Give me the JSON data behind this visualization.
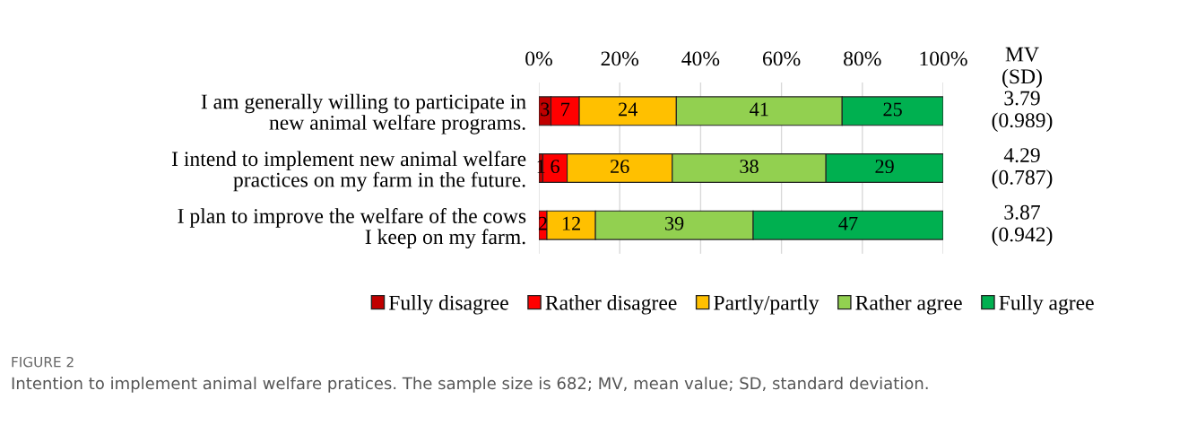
{
  "chart_data": {
    "type": "bar",
    "orientation": "horizontal",
    "stacked": true,
    "categories": [
      "I am generally willing to participate in\nnew animal welfare programs.",
      "I intend to implement new animal welfare\npractices on my farm in the future.",
      "I plan to improve the welfare of the cows\nI keep on my farm."
    ],
    "series": [
      {
        "name": "Fully disagree",
        "color": "#c00000",
        "values": [
          3,
          1,
          0
        ],
        "value_labels": [
          "3",
          "1",
          null
        ]
      },
      {
        "name": "Rather disagree",
        "color": "#ff0000",
        "values": [
          7,
          6,
          2
        ],
        "value_labels": [
          "7",
          "6",
          "2"
        ]
      },
      {
        "name": "Partly/partly",
        "color": "#ffc000",
        "values": [
          24,
          26,
          12
        ],
        "value_labels": [
          "24",
          "26",
          "12"
        ]
      },
      {
        "name": "Rather agree",
        "color": "#92d050",
        "values": [
          41,
          38,
          39
        ],
        "value_labels": [
          "41",
          "38",
          "39"
        ]
      },
      {
        "name": "Fully agree",
        "color": "#00b050",
        "values": [
          25,
          29,
          47
        ],
        "value_labels": [
          "25",
          "29",
          "47"
        ]
      }
    ],
    "xlim": [
      0,
      100
    ],
    "xticks": [
      {
        "value": 0,
        "label": "0%"
      },
      {
        "value": 20,
        "label": "20%"
      },
      {
        "value": 40,
        "label": "40%"
      },
      {
        "value": 60,
        "label": "60%"
      },
      {
        "value": 80,
        "label": "80%"
      },
      {
        "value": 100,
        "label": "100%"
      }
    ],
    "grid": "x",
    "legend": "bottom",
    "annotations": [
      "MV\n(SD)",
      "3.79\n(0.989)",
      "4.29\n(0.787)",
      "3.87\n(0.942)",
      "FIGURE 2",
      "Intention to implement animal welfare pratices. The sample size is 682; MV, mean value; SD, standard deviation."
    ]
  }
}
